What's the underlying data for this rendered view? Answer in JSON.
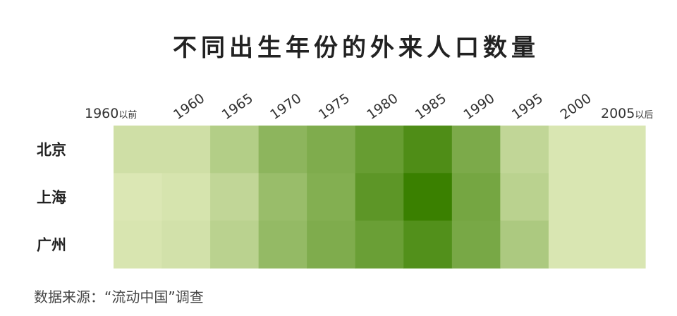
{
  "chart_data": {
    "type": "heatmap",
    "title": "不同出生年份的外来人口数量",
    "x_categories": [
      "1960以前",
      "1960",
      "1965",
      "1970",
      "1975",
      "1980",
      "1985",
      "1990",
      "1995",
      "2000",
      "2005以后"
    ],
    "y_categories": [
      "北京",
      "上海",
      "广州"
    ],
    "values": [
      [
        14,
        14,
        30,
        52,
        60,
        74,
        88,
        62,
        22,
        8,
        8
      ],
      [
        7,
        10,
        22,
        45,
        58,
        80,
        100,
        66,
        26,
        8,
        8
      ],
      [
        9,
        12,
        26,
        48,
        60,
        72,
        86,
        64,
        34,
        8,
        8
      ]
    ],
    "color_low": "#dbe7b4",
    "color_high": "#3a8000",
    "legend": "none",
    "grid": false
  },
  "source": "数据来源：“流动中国”调查"
}
